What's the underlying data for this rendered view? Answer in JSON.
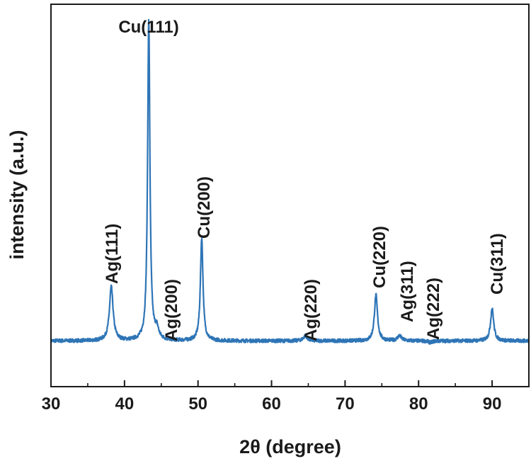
{
  "chart_data": {
    "type": "line",
    "xlabel": "2θ (degree)",
    "ylabel": "intensity (a.u.)",
    "xlim": [
      30,
      95
    ],
    "ylim": [
      -12,
      105
    ],
    "x_ticks": [
      30,
      40,
      50,
      60,
      70,
      80,
      90
    ],
    "x_minor_ticks": [
      35,
      45,
      55,
      65,
      75,
      85
    ],
    "y_ticks_labeled": false,
    "grid": false,
    "series_color": "#2e75b6",
    "baseline": 2,
    "peaks": [
      {
        "label": "Ag(111)",
        "x": 38.2,
        "y": 18.5,
        "width": 0.35
      },
      {
        "label": "Cu(111)",
        "x": 43.3,
        "y": 100,
        "width": 0.22
      },
      {
        "label": "Ag(200)",
        "x": 44.4,
        "y": 5,
        "width": 0.35
      },
      {
        "label": "Cu(200)",
        "x": 50.5,
        "y": 33.5,
        "width": 0.25
      },
      {
        "label": "Ag(220)",
        "x": 64.6,
        "y": 3.5,
        "width": 0.4
      },
      {
        "label": "Cu(220)",
        "x": 74.2,
        "y": 16,
        "width": 0.3
      },
      {
        "label": "Ag(311)",
        "x": 77.4,
        "y": 3.5,
        "width": 0.4
      },
      {
        "label": "Ag(222)",
        "x": 81.6,
        "y": 1.5,
        "width": 0.4
      },
      {
        "label": "Cu(311)",
        "x": 90.0,
        "y": 12,
        "width": 0.3
      }
    ]
  }
}
